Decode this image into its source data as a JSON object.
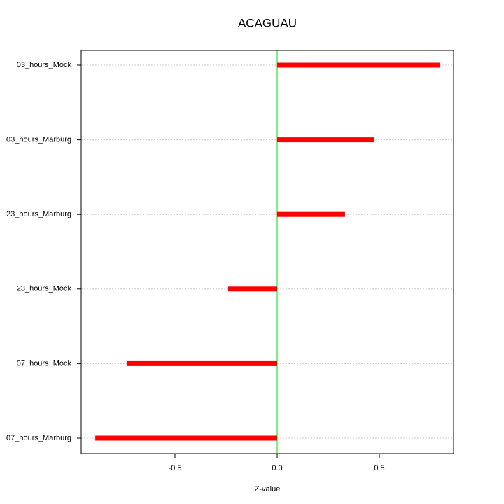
{
  "chart_data": {
    "type": "bar",
    "orientation": "horizontal",
    "title": "ACAGUAU",
    "x_label": "Z-value",
    "categories": [
      "03_hours_Mock",
      "03_hours_Marburg",
      "23_hours_Marburg",
      "23_hours_Mock",
      "07_hours_Mock",
      "07_hours_Marburg"
    ],
    "values": [
      0.795,
      0.473,
      0.332,
      -0.24,
      -0.736,
      -0.89
    ],
    "color": "#ff0000",
    "zero_line_color": "#00e000",
    "xlim": [
      -0.959,
      0.863
    ],
    "xticks": [
      -0.5,
      {
        "value": 0,
        "label": "0.0"
      },
      0.5
    ],
    "grid": true
  }
}
